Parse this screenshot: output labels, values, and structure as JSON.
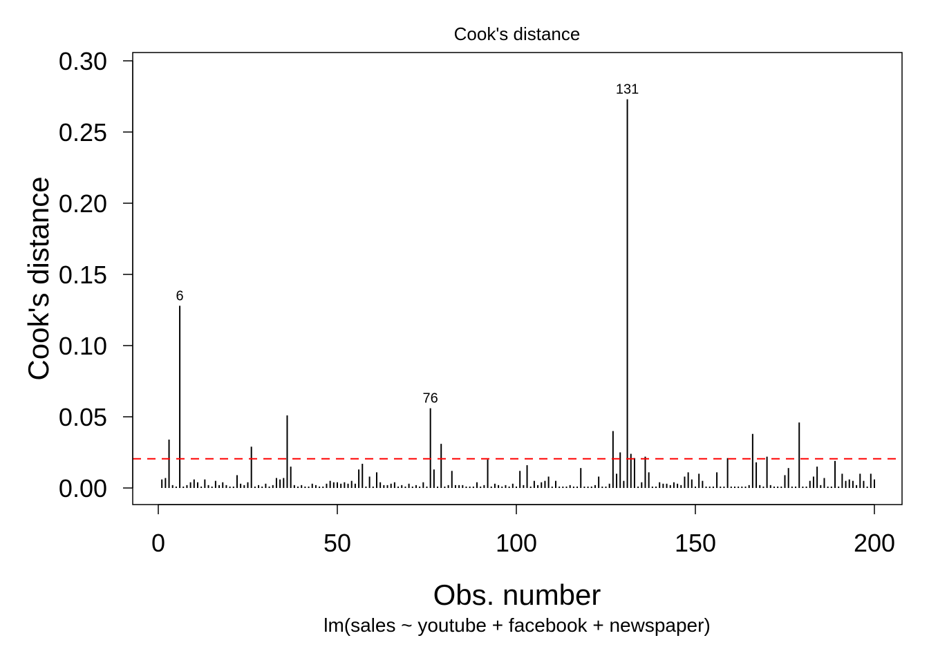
{
  "chart_data": {
    "type": "bar",
    "title": "Cook's distance",
    "xlabel": "Obs. number",
    "ylabel": "Cook's distance",
    "subtitle": "lm(sales ~ youtube + facebook + newspaper)",
    "xlim": [
      0,
      200
    ],
    "ylim": [
      0,
      0.3
    ],
    "xticks": [
      0,
      50,
      100,
      150,
      200
    ],
    "xtick_labels": [
      "0",
      "50",
      "100",
      "150",
      "200"
    ],
    "yticks": [
      0,
      0.05,
      0.1,
      0.15,
      0.2,
      0.25,
      0.3
    ],
    "ytick_labels": [
      "0.00",
      "0.05",
      "0.10",
      "0.15",
      "0.20",
      "0.25",
      "0.30"
    ],
    "threshold": 0.0205,
    "threshold_color": "#ff0000",
    "bar_color": "#000000",
    "grid": false,
    "annotations": [
      {
        "obs": 6,
        "label": "6"
      },
      {
        "obs": 76,
        "label": "76"
      },
      {
        "obs": 131,
        "label": "131"
      }
    ],
    "values": [
      0.006,
      0.007,
      0.034,
      0.002,
      0.001,
      0.128,
      0.001,
      0.002,
      0.004,
      0.006,
      0.004,
      0.001,
      0.006,
      0.002,
      0.001,
      0.005,
      0.002,
      0.004,
      0.002,
      0.001,
      0.001,
      0.009,
      0.003,
      0.002,
      0.004,
      0.029,
      0.001,
      0.002,
      0.001,
      0.003,
      0.001,
      0.002,
      0.007,
      0.006,
      0.007,
      0.051,
      0.015,
      0.002,
      0.001,
      0.002,
      0.001,
      0.001,
      0.003,
      0.002,
      0.001,
      0.001,
      0.003,
      0.005,
      0.004,
      0.004,
      0.003,
      0.004,
      0.003,
      0.005,
      0.003,
      0.013,
      0.017,
      0.001,
      0.008,
      0.001,
      0.011,
      0.004,
      0.002,
      0.002,
      0.003,
      0.004,
      0.001,
      0.002,
      0.001,
      0.003,
      0.001,
      0.002,
      0.001,
      0.004,
      0.001,
      0.056,
      0.013,
      0.001,
      0.031,
      0.001,
      0.002,
      0.012,
      0.002,
      0.002,
      0.002,
      0.001,
      0.001,
      0.001,
      0.004,
      0.001,
      0.002,
      0.02,
      0.001,
      0.003,
      0.002,
      0.001,
      0.002,
      0.001,
      0.003,
      0.001,
      0.012,
      0.002,
      0.016,
      0.001,
      0.005,
      0.002,
      0.004,
      0.005,
      0.008,
      0.001,
      0.005,
      0.001,
      0.001,
      0.001,
      0.002,
      0.001,
      0.001,
      0.014,
      0.001,
      0.001,
      0.001,
      0.002,
      0.008,
      0.001,
      0.001,
      0.003,
      0.04,
      0.01,
      0.025,
      0.005,
      0.273,
      0.024,
      0.021,
      0.001,
      0.004,
      0.022,
      0.011,
      0.001,
      0.001,
      0.004,
      0.003,
      0.003,
      0.002,
      0.004,
      0.003,
      0.002,
      0.008,
      0.011,
      0.006,
      0.001,
      0.01,
      0.005,
      0.001,
      0.001,
      0.001,
      0.011,
      0.001,
      0.001,
      0.021,
      0.001,
      0.001,
      0.001,
      0.001,
      0.001,
      0.002,
      0.038,
      0.018,
      0.002,
      0.001,
      0.022,
      0.002,
      0.001,
      0.001,
      0.001,
      0.009,
      0.014,
      0.001,
      0.001,
      0.046,
      0.001,
      0.001,
      0.005,
      0.008,
      0.015,
      0.002,
      0.007,
      0.001,
      0.001,
      0.019,
      0.001,
      0.01,
      0.005,
      0.006,
      0.005,
      0.002,
      0.01,
      0.005,
      0.001,
      0.01,
      0.006
    ]
  }
}
